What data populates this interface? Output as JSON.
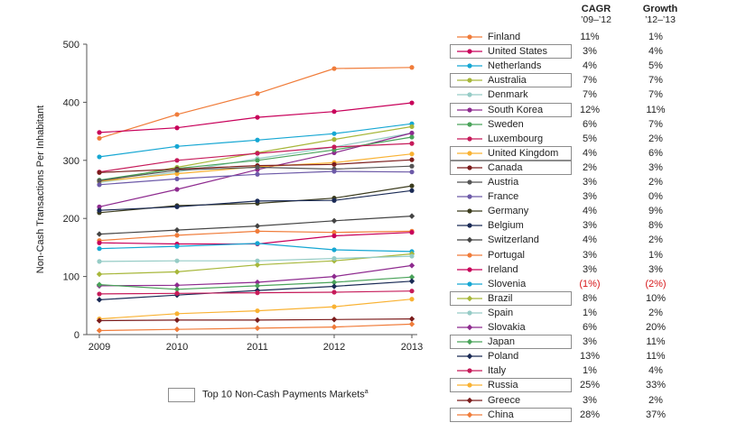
{
  "chart_data": {
    "type": "line",
    "ylabel": "Non-Cash Transactions Per Inhabitant",
    "xlabel": "",
    "x": [
      "2009",
      "2010",
      "2011",
      "2012",
      "2013"
    ],
    "ylim": [
      0,
      500
    ],
    "yticks": [
      0,
      100,
      200,
      300,
      400,
      500
    ],
    "grid": false,
    "legend_position": "right",
    "column_headers": [
      {
        "title": "CAGR",
        "sub": "’09–’12"
      },
      {
        "title": "Growth",
        "sub": "’12–’13"
      }
    ],
    "series": [
      {
        "name": "Finland",
        "color": "#f07c3a",
        "marker": "circle",
        "boxed": false,
        "cagr": "11%",
        "growth": "1%",
        "values": [
          338,
          379,
          415,
          458,
          460
        ]
      },
      {
        "name": "United States",
        "color": "#c8005a",
        "marker": "circle",
        "boxed": true,
        "cagr": "3%",
        "growth": "4%",
        "values": [
          348,
          356,
          374,
          384,
          399
        ]
      },
      {
        "name": "Netherlands",
        "color": "#16a7d3",
        "marker": "circle",
        "boxed": false,
        "cagr": "4%",
        "growth": "5%",
        "values": [
          306,
          324,
          335,
          346,
          363
        ]
      },
      {
        "name": "Australia",
        "color": "#a7b73a",
        "marker": "circle",
        "boxed": true,
        "cagr": "7%",
        "growth": "7%",
        "values": [
          263,
          288,
          313,
          336,
          358
        ]
      },
      {
        "name": "Denmark",
        "color": "#96ccc6",
        "marker": "circle",
        "boxed": false,
        "cagr": "7%",
        "growth": "7%",
        "values": [
          262,
          280,
          303,
          323,
          347
        ]
      },
      {
        "name": "South Korea",
        "color": "#8e2b8f",
        "marker": "circle",
        "boxed": true,
        "cagr": "12%",
        "growth": "11%",
        "values": [
          220,
          250,
          284,
          313,
          347
        ]
      },
      {
        "name": "Sweden",
        "color": "#4aa35a",
        "marker": "circle",
        "boxed": false,
        "cagr": "6%",
        "growth": "7%",
        "values": [
          266,
          286,
          300,
          318,
          340
        ]
      },
      {
        "name": "Luxembourg",
        "color": "#c61b5a",
        "marker": "circle",
        "boxed": false,
        "cagr": "5%",
        "growth": "2%",
        "values": [
          280,
          300,
          312,
          323,
          329
        ]
      },
      {
        "name": "United Kingdom",
        "color": "#f9b233",
        "marker": "circle",
        "boxed": true,
        "cagr": "4%",
        "growth": "6%",
        "values": [
          264,
          277,
          289,
          296,
          311
        ]
      },
      {
        "name": "Canada",
        "color": "#7b1c1c",
        "marker": "circle",
        "boxed": true,
        "cagr": "2%",
        "growth": "3%",
        "values": [
          279,
          285,
          291,
          293,
          301
        ]
      },
      {
        "name": "Austria",
        "color": "#555555",
        "marker": "circle",
        "boxed": false,
        "cagr": "3%",
        "growth": "2%",
        "values": [
          265,
          283,
          288,
          285,
          290
        ]
      },
      {
        "name": "France",
        "color": "#6d5aa8",
        "marker": "circle",
        "boxed": false,
        "cagr": "3%",
        "growth": "0%",
        "values": [
          258,
          268,
          276,
          281,
          280
        ]
      },
      {
        "name": "Germany",
        "color": "#3c3c1e",
        "marker": "circle",
        "boxed": false,
        "cagr": "4%",
        "growth": "9%",
        "values": [
          210,
          222,
          226,
          235,
          256
        ]
      },
      {
        "name": "Belgium",
        "color": "#1a2a55",
        "marker": "circle",
        "boxed": false,
        "cagr": "3%",
        "growth": "8%",
        "values": [
          214,
          220,
          230,
          231,
          248
        ]
      },
      {
        "name": "Switzerland",
        "color": "#444444",
        "marker": "diamond",
        "boxed": false,
        "cagr": "4%",
        "growth": "2%",
        "values": [
          173,
          180,
          187,
          196,
          204
        ]
      },
      {
        "name": "Portugal",
        "color": "#f07c3a",
        "marker": "circle",
        "boxed": false,
        "cagr": "3%",
        "growth": "1%",
        "values": [
          162,
          171,
          178,
          176,
          178
        ]
      },
      {
        "name": "Ireland",
        "color": "#c8005a",
        "marker": "circle",
        "boxed": false,
        "cagr": "3%",
        "growth": "3%",
        "values": [
          158,
          156,
          156,
          170,
          176
        ]
      },
      {
        "name": "Slovenia",
        "color": "#16a7d3",
        "marker": "circle",
        "boxed": false,
        "cagr_neg": "(1%)",
        "growth_neg": "(2%)",
        "values": [
          148,
          152,
          157,
          146,
          143
        ]
      },
      {
        "name": "Brazil",
        "color": "#a7b73a",
        "marker": "diamond",
        "boxed": true,
        "cagr": "8%",
        "growth": "10%",
        "values": [
          104,
          108,
          120,
          127,
          139
        ]
      },
      {
        "name": "Spain",
        "color": "#96ccc6",
        "marker": "circle",
        "boxed": false,
        "cagr": "1%",
        "growth": "2%",
        "values": [
          126,
          127,
          127,
          131,
          135
        ]
      },
      {
        "name": "Slovakia",
        "color": "#8e2b8f",
        "marker": "diamond",
        "boxed": false,
        "cagr": "6%",
        "growth": "20%",
        "values": [
          84,
          85,
          90,
          100,
          119
        ]
      },
      {
        "name": "Japan",
        "color": "#4aa35a",
        "marker": "diamond",
        "boxed": true,
        "cagr": "3%",
        "growth": "11%",
        "values": [
          86,
          78,
          84,
          90,
          99
        ]
      },
      {
        "name": "Poland",
        "color": "#1a2a55",
        "marker": "diamond",
        "boxed": false,
        "cagr": "13%",
        "growth": "11%",
        "values": [
          60,
          68,
          76,
          83,
          92
        ]
      },
      {
        "name": "Italy",
        "color": "#c61b5a",
        "marker": "circle",
        "boxed": false,
        "cagr": "1%",
        "growth": "4%",
        "values": [
          70,
          71,
          72,
          73,
          75
        ]
      },
      {
        "name": "Russia",
        "color": "#f9b233",
        "marker": "circle",
        "boxed": true,
        "cagr": "25%",
        "growth": "33%",
        "values": [
          27,
          36,
          41,
          48,
          61
        ]
      },
      {
        "name": "Greece",
        "color": "#7b1c1c",
        "marker": "diamond",
        "boxed": false,
        "cagr": "3%",
        "growth": "2%",
        "values": [
          24,
          25,
          25,
          26,
          27
        ]
      },
      {
        "name": "China",
        "color": "#f07c3a",
        "marker": "diamond",
        "boxed": true,
        "cagr": "28%",
        "growth": "37%",
        "values": [
          7,
          9,
          11,
          13,
          18
        ]
      }
    ],
    "footnote": "Top 10 Non-Cash Payments Markets",
    "footnote_sup": "a"
  }
}
